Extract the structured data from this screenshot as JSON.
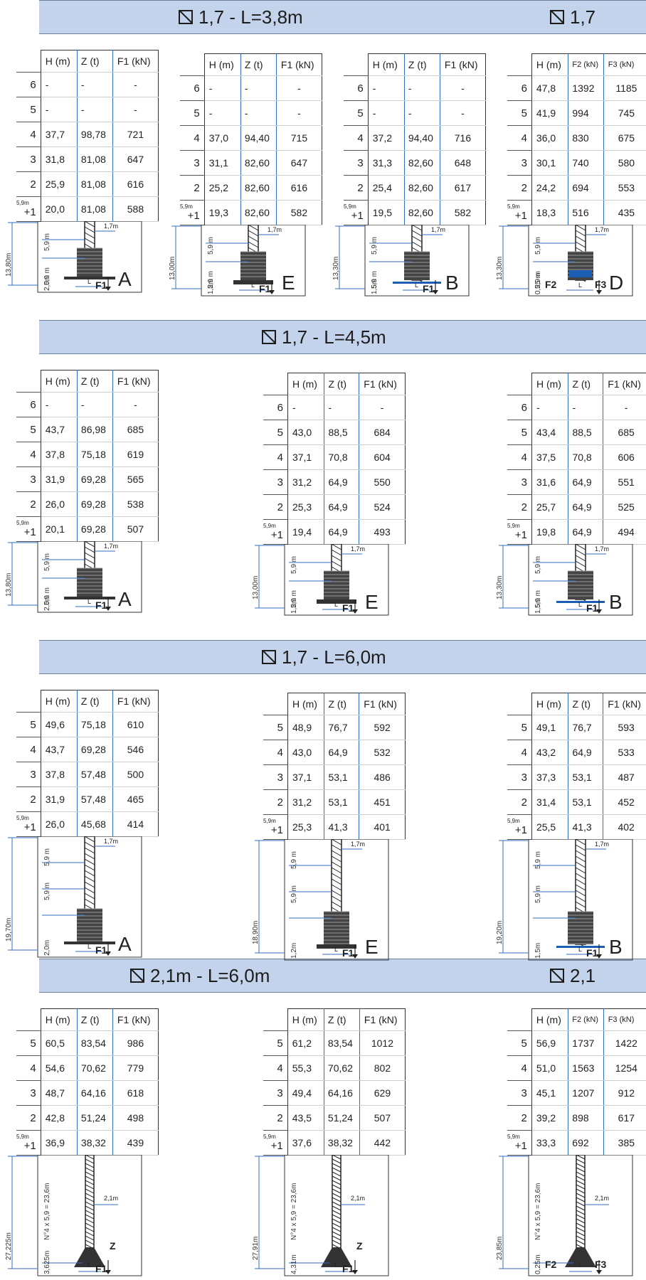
{
  "sections": [
    {
      "title": "1,7 - L=3,8m",
      "title2": "1,7"
    },
    {
      "title": "1,7 - L=4,5m"
    },
    {
      "title": "1,7 - L=6,0m"
    },
    {
      "title": "2,1m - L=6,0m",
      "title2": "2,1"
    }
  ],
  "common": {
    "level_prefix": "5,9m",
    "col_h": "H (m)",
    "col_z": "Z (t)",
    "col_f1": "F1 (kN)",
    "col_f2": "F2 (kN)",
    "col_f3": "F3 (kN)",
    "seg": "5,9 m",
    "f1": "F1",
    "f2": "F2",
    "f3": "F3",
    "z": "Z",
    "L": "L",
    "mast_17": "1,7m",
    "mast_21": "2,1m",
    "n4": "N°4 x 5,9 = 23,6m"
  },
  "blocks": [
    {
      "letter": "A",
      "total": "13,80m",
      "base": "2,0m",
      "rows": [
        [
          "6",
          "-",
          "-",
          "-"
        ],
        [
          "5",
          "-",
          "-",
          "-"
        ],
        [
          "4",
          "37,7",
          "98,78",
          "721"
        ],
        [
          "3",
          "31,8",
          "81,08",
          "647"
        ],
        [
          "2",
          "25,9",
          "81,08",
          "616"
        ],
        [
          "+1",
          "20,0",
          "81,08",
          "588"
        ]
      ]
    },
    {
      "letter": "E",
      "total": "13,00m",
      "base": "1,2m",
      "rows": [
        [
          "6",
          "-",
          "-",
          "-"
        ],
        [
          "5",
          "-",
          "-",
          "-"
        ],
        [
          "4",
          "37,0",
          "94,40",
          "715"
        ],
        [
          "3",
          "31,1",
          "82,60",
          "647"
        ],
        [
          "2",
          "25,2",
          "82,60",
          "616"
        ],
        [
          "+1",
          "19,3",
          "82,60",
          "582"
        ]
      ]
    },
    {
      "letter": "B",
      "total": "13,30m",
      "base": "1,5m",
      "rows": [
        [
          "6",
          "-",
          "-",
          "-"
        ],
        [
          "5",
          "-",
          "-",
          "-"
        ],
        [
          "4",
          "37,2",
          "94,40",
          "716"
        ],
        [
          "3",
          "31,3",
          "82,60",
          "648"
        ],
        [
          "2",
          "25,4",
          "82,60",
          "617"
        ],
        [
          "+1",
          "19,5",
          "82,60",
          "582"
        ]
      ]
    },
    {
      "letter": "D",
      "total": "13,30m",
      "base": "0,25 m",
      "rows": [
        [
          "6",
          "47,8",
          "1392",
          "1185"
        ],
        [
          "5",
          "41,9",
          "994",
          "745"
        ],
        [
          "4",
          "36,0",
          "830",
          "675"
        ],
        [
          "3",
          "30,1",
          "740",
          "580"
        ],
        [
          "2",
          "24,2",
          "694",
          "553"
        ],
        [
          "+1",
          "18,3",
          "516",
          "435"
        ]
      ]
    },
    {
      "letter": "A",
      "total": "13,80m",
      "base": "2,0m",
      "rows": [
        [
          "6",
          "-",
          "-",
          "-"
        ],
        [
          "5",
          "43,7",
          "86,98",
          "685"
        ],
        [
          "4",
          "37,8",
          "75,18",
          "619"
        ],
        [
          "3",
          "31,9",
          "69,28",
          "565"
        ],
        [
          "2",
          "26,0",
          "69,28",
          "538"
        ],
        [
          "+1",
          "20,1",
          "69,28",
          "507"
        ]
      ]
    },
    {
      "letter": "E",
      "total": "13,00m",
      "base": "1,2m",
      "rows": [
        [
          "6",
          "-",
          "-",
          "-"
        ],
        [
          "5",
          "43,0",
          "88,5",
          "684"
        ],
        [
          "4",
          "37,1",
          "70,8",
          "604"
        ],
        [
          "3",
          "31,2",
          "64,9",
          "550"
        ],
        [
          "2",
          "25,3",
          "64,9",
          "524"
        ],
        [
          "+1",
          "19,4",
          "64,9",
          "493"
        ]
      ]
    },
    {
      "letter": "B",
      "total": "13,30m",
      "base": "1,5m",
      "rows": [
        [
          "6",
          "-",
          "-",
          "-"
        ],
        [
          "5",
          "43,4",
          "88,5",
          "685"
        ],
        [
          "4",
          "37,5",
          "70,8",
          "606"
        ],
        [
          "3",
          "31,6",
          "64,9",
          "551"
        ],
        [
          "2",
          "25,7",
          "64,9",
          "525"
        ],
        [
          "+1",
          "19,8",
          "64,9",
          "494"
        ]
      ]
    },
    {
      "letter": "A",
      "total": "19,70m",
      "base": "2,0m",
      "rows": [
        [
          "5",
          "49,6",
          "75,18",
          "610"
        ],
        [
          "4",
          "43,7",
          "69,28",
          "546"
        ],
        [
          "3",
          "37,8",
          "57,48",
          "500"
        ],
        [
          "2",
          "31,9",
          "57,48",
          "465"
        ],
        [
          "+1",
          "26,0",
          "45,68",
          "414"
        ]
      ]
    },
    {
      "letter": "E",
      "total": "18,90m",
      "base": "1,2m",
      "rows": [
        [
          "5",
          "48,9",
          "76,7",
          "592"
        ],
        [
          "4",
          "43,0",
          "64,9",
          "532"
        ],
        [
          "3",
          "37,1",
          "53,1",
          "486"
        ],
        [
          "2",
          "31,2",
          "53,1",
          "451"
        ],
        [
          "+1",
          "25,3",
          "41,3",
          "401"
        ]
      ]
    },
    {
      "letter": "B",
      "total": "19,20m",
      "base": "1,5m",
      "rows": [
        [
          "5",
          "49,1",
          "76,7",
          "593"
        ],
        [
          "4",
          "43,2",
          "64,9",
          "533"
        ],
        [
          "3",
          "37,3",
          "53,1",
          "487"
        ],
        [
          "2",
          "31,4",
          "53,1",
          "452"
        ],
        [
          "+1",
          "25,5",
          "41,3",
          "402"
        ]
      ]
    },
    {
      "total": "27,225m",
      "base": "3,625m",
      "rows": [
        [
          "5",
          "60,5",
          "83,54",
          "986"
        ],
        [
          "4",
          "54,6",
          "70,62",
          "779"
        ],
        [
          "3",
          "48,7",
          "64,16",
          "618"
        ],
        [
          "2",
          "42,8",
          "51,24",
          "498"
        ],
        [
          "+1",
          "36,9",
          "38,32",
          "439"
        ]
      ]
    },
    {
      "total": "27,91m",
      "base": "4,31m",
      "rows": [
        [
          "5",
          "61,2",
          "83,54",
          "1012"
        ],
        [
          "4",
          "55,3",
          "70,62",
          "802"
        ],
        [
          "3",
          "49,4",
          "64,16",
          "629"
        ],
        [
          "2",
          "43,5",
          "51,24",
          "507"
        ],
        [
          "+1",
          "37,6",
          "38,32",
          "442"
        ]
      ]
    },
    {
      "total": "23,85m",
      "base": "0,25m",
      "rows": [
        [
          "5",
          "56,9",
          "1737",
          "1422"
        ],
        [
          "4",
          "51,0",
          "1563",
          "1254"
        ],
        [
          "3",
          "45,1",
          "1207",
          "912"
        ],
        [
          "2",
          "39,2",
          "898",
          "617"
        ],
        [
          "+1",
          "33,3",
          "692",
          "385"
        ]
      ]
    }
  ]
}
